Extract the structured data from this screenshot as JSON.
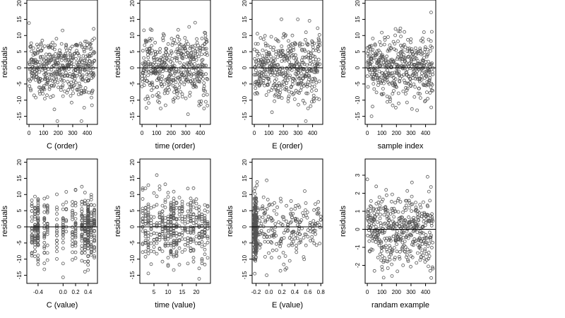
{
  "figure": {
    "background": "#ffffff",
    "point_color": "#555555",
    "line_color": "#000000"
  },
  "chart_data": [
    {
      "type": "scatter",
      "title": "",
      "xlabel": "C (order)",
      "ylabel": "residuals",
      "xlim": [
        -15,
        470
      ],
      "ylim": [
        -17.5,
        21
      ],
      "xticks": [
        0,
        100,
        200,
        300,
        400
      ],
      "xticklabels": [
        "0",
        "100",
        "200",
        "300",
        "400"
      ],
      "yticks": [
        -15,
        -10,
        -5,
        0,
        5,
        10,
        15,
        20
      ],
      "yticklabels": [
        "-15",
        "-10",
        "-5",
        "0",
        "5",
        "10",
        "15",
        "20"
      ],
      "hline": 0,
      "grid": false,
      "legend": "none",
      "points": {
        "n": 450,
        "x_kind": "index",
        "x_min": 0,
        "x_max": 450,
        "resid_sd": 5.0,
        "resid_min": -16.5,
        "resid_max": 20
      }
    },
    {
      "type": "scatter",
      "title": "",
      "xlabel": "time (order)",
      "ylabel": "residuals",
      "xlim": [
        -15,
        470
      ],
      "ylim": [
        -17.5,
        21
      ],
      "xticks": [
        0,
        100,
        200,
        300,
        400
      ],
      "xticklabels": [
        "0",
        "100",
        "200",
        "300",
        "400"
      ],
      "yticks": [
        -15,
        -10,
        -5,
        0,
        5,
        10,
        15,
        20
      ],
      "yticklabels": [
        "-15",
        "-10",
        "-5",
        "0",
        "5",
        "10",
        "15",
        "20"
      ],
      "hline": 0,
      "grid": false,
      "legend": "none",
      "points": {
        "n": 450,
        "x_kind": "index",
        "x_min": 0,
        "x_max": 450,
        "resid_sd": 5.0,
        "resid_min": -16.5,
        "resid_max": 20
      }
    },
    {
      "type": "scatter",
      "title": "",
      "xlabel": "E (order)",
      "ylabel": "residuals",
      "xlim": [
        -15,
        470
      ],
      "ylim": [
        -17.5,
        21
      ],
      "xticks": [
        0,
        100,
        200,
        300,
        400
      ],
      "xticklabels": [
        "0",
        "100",
        "200",
        "300",
        "400"
      ],
      "yticks": [
        -15,
        -10,
        -5,
        0,
        5,
        10,
        15,
        20
      ],
      "yticklabels": [
        "-15",
        "-10",
        "-5",
        "0",
        "5",
        "10",
        "15",
        "20"
      ],
      "hline": 0,
      "grid": false,
      "legend": "none",
      "points": {
        "n": 450,
        "x_kind": "index",
        "x_min": 0,
        "x_max": 450,
        "resid_sd": 5.0,
        "resid_min": -16.5,
        "resid_max": 20
      }
    },
    {
      "type": "scatter",
      "title": "",
      "xlabel": "sample index",
      "ylabel": "residuals",
      "xlim": [
        -15,
        470
      ],
      "ylim": [
        -17.5,
        21
      ],
      "xticks": [
        0,
        100,
        200,
        300,
        400
      ],
      "xticklabels": [
        "0",
        "100",
        "200",
        "300",
        "400"
      ],
      "yticks": [
        -15,
        -10,
        -5,
        0,
        5,
        10,
        15,
        20
      ],
      "yticklabels": [
        "-15",
        "-10",
        "-5",
        "0",
        "5",
        "10",
        "15",
        "20"
      ],
      "hline": 0,
      "grid": false,
      "legend": "none",
      "points": {
        "n": 450,
        "x_kind": "index",
        "x_min": 0,
        "x_max": 450,
        "resid_sd": 5.0,
        "resid_min": -16.5,
        "resid_max": 20
      }
    },
    {
      "type": "scatter",
      "title": "",
      "xlabel": "C (value)",
      "ylabel": "residuals",
      "xlim": [
        -0.58,
        0.55
      ],
      "ylim": [
        -17.5,
        21
      ],
      "xticks": [
        -0.4,
        0.0,
        0.2,
        0.4
      ],
      "xticklabels": [
        "-0.4",
        "0.0",
        "0.2",
        "0.4"
      ],
      "yticks": [
        -15,
        -10,
        -5,
        0,
        5,
        10,
        15,
        20
      ],
      "yticklabels": [
        "-15",
        "-10",
        "-5",
        "0",
        "5",
        "10",
        "15",
        "20"
      ],
      "hline": 0,
      "grid": false,
      "legend": "none",
      "points": {
        "n": 450,
        "x_kind": "discrete",
        "x_levels": [
          -0.5,
          -0.45,
          -0.4,
          -0.3,
          -0.25,
          -0.1,
          0.0,
          0.05,
          0.15,
          0.2,
          0.3,
          0.35,
          0.4,
          0.45,
          0.5
        ],
        "x_weights": [
          3,
          4,
          5,
          2,
          2,
          2,
          2,
          2,
          2,
          2,
          3,
          4,
          6,
          4,
          3
        ],
        "resid_sd": 5.0,
        "resid_min": -16.5,
        "resid_max": 20
      }
    },
    {
      "type": "scatter",
      "title": "",
      "xlabel": "time (value)",
      "ylabel": "residuals",
      "xlim": [
        0,
        25
      ],
      "ylim": [
        -17.5,
        21
      ],
      "xticks": [
        5,
        10,
        15,
        20
      ],
      "xticklabels": [
        "5",
        "10",
        "15",
        "20"
      ],
      "yticks": [
        -15,
        -10,
        -5,
        0,
        5,
        10,
        15,
        20
      ],
      "yticklabels": [
        "-15",
        "-10",
        "-5",
        "0",
        "5",
        "10",
        "15",
        "20"
      ],
      "hline": 0,
      "grid": false,
      "legend": "none",
      "points": {
        "n": 450,
        "x_kind": "discrete",
        "x_levels": [
          1,
          2,
          3,
          4,
          5,
          6,
          7,
          8,
          9,
          10,
          11,
          12,
          13,
          14,
          15,
          16,
          17,
          18,
          19,
          20,
          21,
          22,
          23,
          24
        ],
        "x_weights": [
          2,
          2,
          3,
          2,
          2,
          2,
          2,
          3,
          2,
          3,
          4,
          6,
          3,
          2,
          2,
          2,
          2,
          2,
          3,
          2,
          2,
          2,
          3,
          2
        ],
        "resid_sd": 5.0,
        "resid_min": -16.5,
        "resid_max": 20
      }
    },
    {
      "type": "scatter",
      "title": "",
      "xlabel": "E (value)",
      "ylabel": "residuals",
      "xlim": [
        -0.26,
        0.83
      ],
      "ylim": [
        -17.5,
        21
      ],
      "xticks": [
        -0.2,
        0.0,
        0.2,
        0.4,
        0.6,
        0.8
      ],
      "xticklabels": [
        "-0.2",
        "0.0",
        "0.2",
        "0.4",
        "0.6",
        "0.8"
      ],
      "yticks": [
        -15,
        -10,
        -5,
        0,
        5,
        10,
        15,
        20
      ],
      "yticklabels": [
        "-15",
        "-10",
        "-5",
        "0",
        "5",
        "10",
        "15",
        "20"
      ],
      "hline": 0,
      "grid": false,
      "legend": "none",
      "points": {
        "n": 450,
        "x_kind": "clustered",
        "cluster_x": -0.21,
        "cluster_spread": 0.015,
        "cluster_fraction": 0.55,
        "x_min": -0.2,
        "x_max": 0.8,
        "resid_sd": 5.0,
        "resid_min": -16.5,
        "resid_max": 20
      }
    },
    {
      "type": "scatter",
      "title": "",
      "xlabel": "randam example",
      "ylabel": "residuals",
      "xlim": [
        -15,
        470
      ],
      "ylim": [
        -3,
        3.9
      ],
      "xticks": [
        0,
        100,
        200,
        300,
        400
      ],
      "xticklabels": [
        "0",
        "100",
        "200",
        "300",
        "400"
      ],
      "yticks": [
        -2,
        -1,
        0,
        1,
        2,
        3
      ],
      "yticklabels": [
        "-2",
        "-1",
        "0",
        "1",
        "2",
        "3"
      ],
      "hline": 0,
      "grid": false,
      "legend": "none",
      "points": {
        "n": 450,
        "x_kind": "index",
        "x_min": 0,
        "x_max": 450,
        "resid_sd": 1.0,
        "resid_min": -2.7,
        "resid_max": 3.7
      }
    }
  ]
}
